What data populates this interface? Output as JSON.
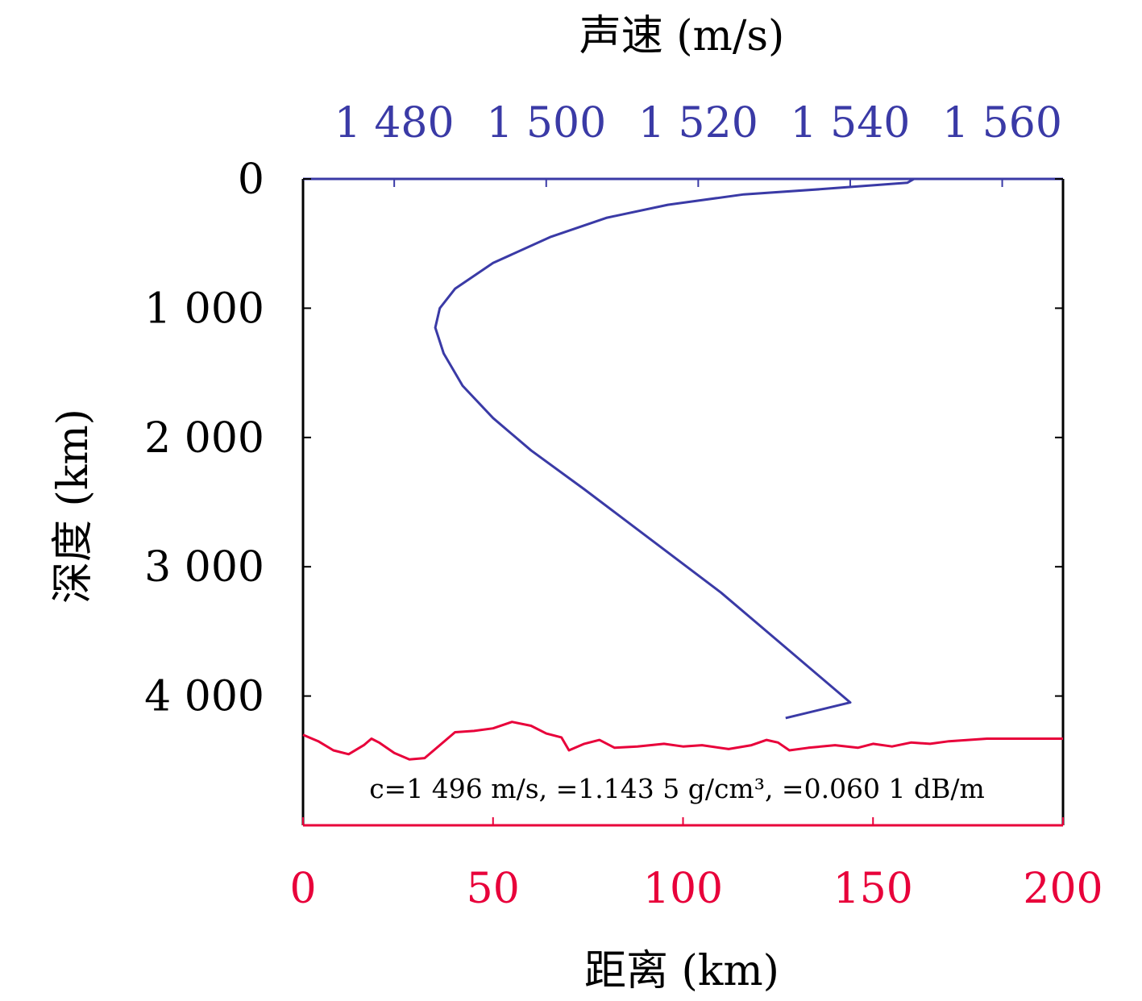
{
  "chart_data": {
    "type": "line",
    "top_axis": {
      "title": "声速 (m/s)",
      "ticks": [
        1480,
        1500,
        1520,
        1540,
        1560
      ],
      "tick_labels": [
        "1 480",
        "1 500",
        "1 520",
        "1 540",
        "1 560"
      ],
      "range": [
        1468,
        1568
      ],
      "color": "#3a3aa6"
    },
    "bottom_axis": {
      "title": "距离 (km)",
      "ticks": [
        0,
        50,
        100,
        150,
        200
      ],
      "tick_labels": [
        "0",
        "50",
        "100",
        "150",
        "200"
      ],
      "range": [
        0,
        200
      ],
      "color": "#e8003a"
    },
    "left_axis": {
      "title": "深度 (km)",
      "ticks": [
        0,
        1000,
        2000,
        3000,
        4000
      ],
      "tick_labels": [
        "0",
        "1 000",
        "2 000",
        "3 000",
        "4 000"
      ],
      "range": [
        0,
        5000
      ],
      "inverted": true,
      "color": "#000000"
    },
    "series": [
      {
        "color": "#3a3aa6",
        "x_axis": "top",
        "points": [
          [
            1548.4,
            0
          ],
          [
            1547.5,
            30
          ],
          [
            1536,
            80
          ],
          [
            1526,
            120
          ],
          [
            1516,
            200
          ],
          [
            1508,
            300
          ],
          [
            1500.5,
            450
          ],
          [
            1493,
            650
          ],
          [
            1488,
            850
          ],
          [
            1486,
            1000
          ],
          [
            1485.4,
            1150
          ],
          [
            1486.5,
            1350
          ],
          [
            1489,
            1600
          ],
          [
            1493,
            1850
          ],
          [
            1498,
            2100
          ],
          [
            1505,
            2400
          ],
          [
            1523,
            3200
          ],
          [
            1531,
            3600
          ],
          [
            1540,
            4050
          ],
          [
            1531.5,
            4170
          ]
        ]
      },
      {
        "color": "#e8003a",
        "x_axis": "bottom",
        "points": [
          [
            0,
            4300
          ],
          [
            4,
            4350
          ],
          [
            8,
            4420
          ],
          [
            12,
            4450
          ],
          [
            16,
            4380
          ],
          [
            18,
            4330
          ],
          [
            20,
            4360
          ],
          [
            24,
            4440
          ],
          [
            28,
            4490
          ],
          [
            32,
            4480
          ],
          [
            36,
            4380
          ],
          [
            40,
            4280
          ],
          [
            45,
            4270
          ],
          [
            50,
            4250
          ],
          [
            55,
            4200
          ],
          [
            60,
            4230
          ],
          [
            64,
            4290
          ],
          [
            68,
            4320
          ],
          [
            70,
            4420
          ],
          [
            74,
            4370
          ],
          [
            78,
            4340
          ],
          [
            82,
            4400
          ],
          [
            88,
            4390
          ],
          [
            95,
            4370
          ],
          [
            100,
            4390
          ],
          [
            105,
            4380
          ],
          [
            112,
            4410
          ],
          [
            118,
            4380
          ],
          [
            122,
            4340
          ],
          [
            125,
            4360
          ],
          [
            128,
            4420
          ],
          [
            133,
            4400
          ],
          [
            140,
            4380
          ],
          [
            146,
            4400
          ],
          [
            150,
            4370
          ],
          [
            155,
            4390
          ],
          [
            160,
            4360
          ],
          [
            165,
            4370
          ],
          [
            170,
            4350
          ],
          [
            175,
            4340
          ],
          [
            180,
            4330
          ],
          [
            190,
            4330
          ],
          [
            200,
            4330
          ]
        ]
      }
    ],
    "annotation": "c=1 496 m/s, =1.143 5 g/cm³, =0.060 1 dB/m",
    "grid": false
  }
}
